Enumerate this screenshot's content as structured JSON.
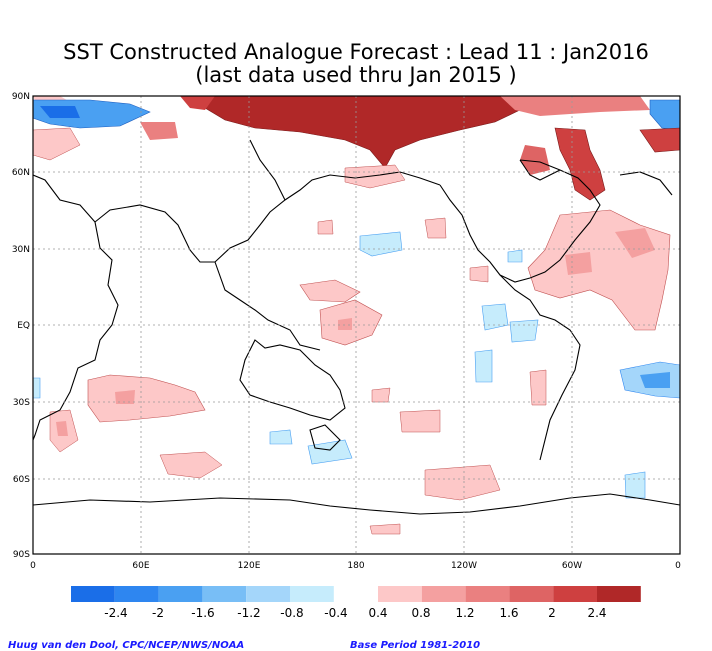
{
  "title": {
    "line1": "SST Constructed Analogue Forecast : Lead 11 : Jan2016",
    "line2": "(last data used thru Jan 2015 )"
  },
  "map": {
    "y_ticks": [
      "90N",
      "60N",
      "30N",
      "EQ",
      "30S",
      "60S",
      "90S"
    ],
    "x_ticks": [
      "0",
      "60E",
      "120E",
      "180",
      "120W",
      "60W",
      "0"
    ]
  },
  "colorbar": {
    "cold_labels": [
      "-2.4",
      "-2",
      "-1.6",
      "-1.2",
      "-0.8",
      "-0.4"
    ],
    "warm_labels": [
      "0.4",
      "0.8",
      "1.2",
      "1.6",
      "2",
      "2.4"
    ],
    "cold_colors": [
      "#1a6ee8",
      "#2e86f0",
      "#4aa0f2",
      "#78bef6",
      "#a4d6fa",
      "#c6ecfc"
    ],
    "warm_colors": [
      "#fdc8c8",
      "#f4a0a0",
      "#ea8080",
      "#de6464",
      "#ce4040",
      "#b02828"
    ]
  },
  "footer": {
    "credit": "Huug van den Dool, CPC/NCEP/NWS/NOAA",
    "period": "Base Period 1981-2010"
  }
}
